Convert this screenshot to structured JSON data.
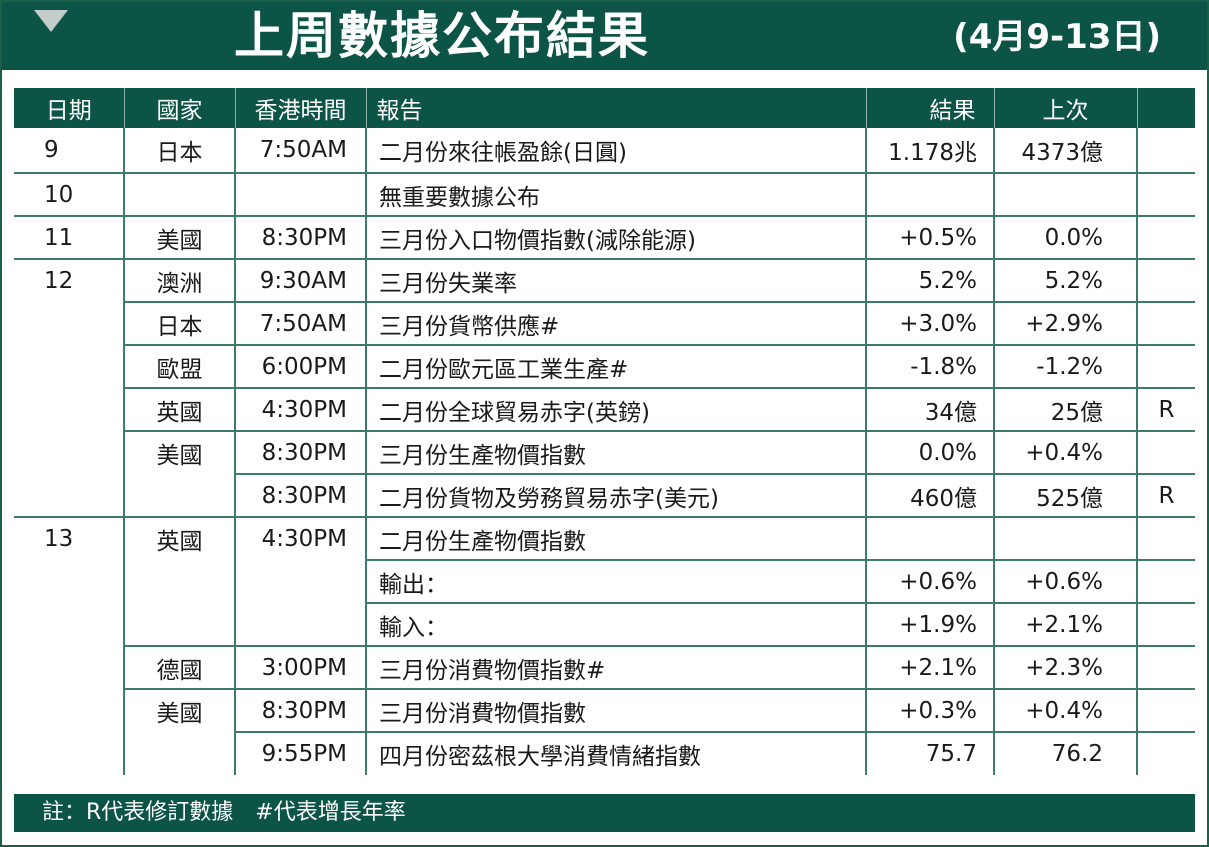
{
  "header": {
    "title": "上周數據公布結果",
    "date_range": "(4月9-13日)"
  },
  "table": {
    "columns": [
      "日期",
      "國家",
      "香港時間",
      "報告",
      "結果",
      "上次",
      ""
    ],
    "rows": [
      [
        "9",
        "日本",
        "7:50AM",
        "二月份來往帳盈餘(日圓)",
        "1.178兆",
        "4373億",
        ""
      ],
      [
        "10",
        "",
        "",
        "無重要數據公布",
        "",
        "",
        ""
      ],
      [
        "11",
        "美國",
        "8:30PM",
        "三月份入口物價指數(減除能源)",
        "+0.5%",
        "0.0%",
        ""
      ],
      [
        "12",
        "澳洲",
        "9:30AM",
        "三月份失業率",
        "5.2%",
        "5.2%",
        ""
      ],
      [
        "",
        "日本",
        "7:50AM",
        "三月份貨幣供應#",
        "+3.0%",
        "+2.9%",
        ""
      ],
      [
        "",
        "歐盟",
        "6:00PM",
        "二月份歐元區工業生產#",
        "-1.8%",
        "-1.2%",
        ""
      ],
      [
        "",
        "英國",
        "4:30PM",
        "二月份全球貿易赤字(英鎊)",
        "34億",
        "25億",
        "R"
      ],
      [
        "",
        "美國",
        "8:30PM",
        "三月份生產物價指數",
        "0.0%",
        "+0.4%",
        ""
      ],
      [
        "",
        "",
        "8:30PM",
        "二月份貨物及勞務貿易赤字(美元)",
        "460億",
        "525億",
        "R"
      ],
      [
        "13",
        "英國",
        "4:30PM",
        "二月份生產物價指數",
        "",
        "",
        ""
      ],
      [
        "",
        "",
        "",
        "輸出：",
        "+0.6%",
        "+0.6%",
        ""
      ],
      [
        "",
        "",
        "",
        "輸入：",
        "+1.9%",
        "+2.1%",
        ""
      ],
      [
        "",
        "德國",
        "3:00PM",
        "三月份消費物價指數#",
        "+2.1%",
        "+2.3%",
        ""
      ],
      [
        "",
        "美國",
        "8:30PM",
        "三月份消費物價指數",
        "+0.3%",
        "+0.4%",
        ""
      ],
      [
        "",
        "",
        "9:55PM",
        "四月份密茲根大學消費情緒指數",
        "75.7",
        "76.2",
        ""
      ]
    ]
  },
  "footer": {
    "note": "註：R代表修訂數據　#代表增長年率"
  }
}
